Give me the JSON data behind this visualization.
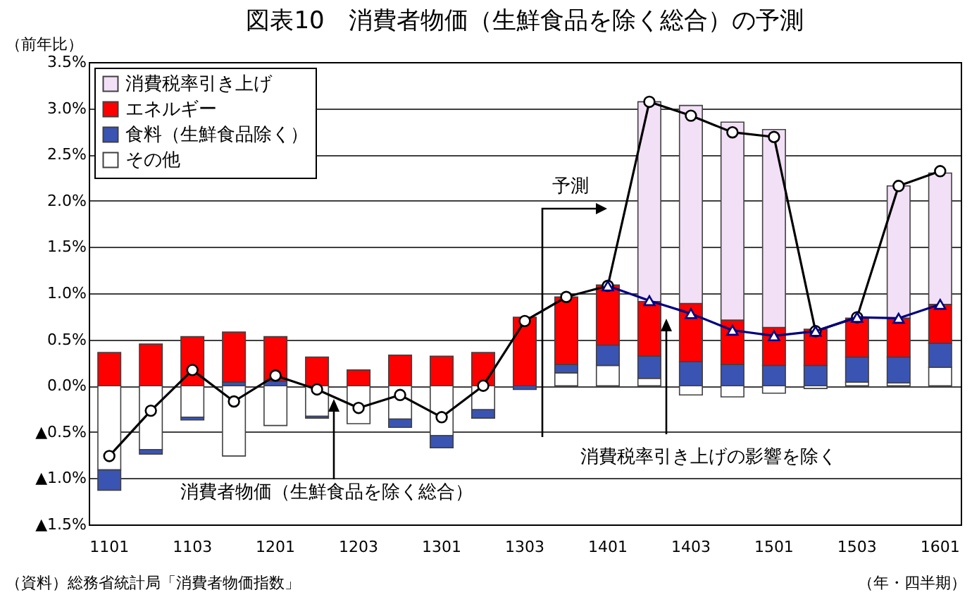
{
  "chart_data": {
    "type": "bar",
    "title": "図表10　消費者物価（生鮮食品を除く総合）の予測",
    "ylabel": "（前年比）",
    "xlabel": "（年・四半期）",
    "annotations": [
      "予測",
      "（資料）総務省統計局「消費者物価指数」"
    ],
    "categories": [
      "1101",
      null,
      "1103",
      null,
      "1201",
      null,
      "1203",
      null,
      "1301",
      null,
      "1303",
      null,
      "1401",
      null,
      "1403",
      null,
      "1501",
      null,
      "1503",
      null,
      "1601"
    ],
    "stacked": true,
    "legend": "top left",
    "grid": "y",
    "ylim": [
      -1.5,
      3.5
    ],
    "yticks": [
      {
        "value": -1.5,
        "label": "▲1.5%"
      },
      {
        "value": -1.0,
        "label": "▲1.0%"
      },
      {
        "value": -0.5,
        "label": "▲0.5%"
      },
      {
        "value": 0,
        "label": "0.0%"
      },
      {
        "value": 0.5,
        "label": "0.5%"
      },
      {
        "value": 1.0,
        "label": "1.0%"
      },
      {
        "value": 1.5,
        "label": "1.5%"
      },
      {
        "value": 2.0,
        "label": "2.0%"
      },
      {
        "value": 2.5,
        "label": "2.5%"
      },
      {
        "value": 3.0,
        "label": "3.0%"
      },
      {
        "value": 3.5,
        "label": "3.5%"
      }
    ],
    "series": [
      {
        "name": "その他",
        "color": "#ffffff",
        "values": [
          -0.91,
          -0.69,
          -0.34,
          -0.76,
          -0.43,
          -0.33,
          -0.41,
          -0.36,
          -0.54,
          -0.26,
          0,
          0.14,
          0.22,
          0.08,
          -0.1,
          -0.12,
          -0.08,
          -0.03,
          0.04,
          0.03,
          0.2
        ]
      },
      {
        "name": "食料（生鮮食品除く）",
        "color": "#3a54b4",
        "values": [
          -0.22,
          -0.05,
          -0.03,
          0.04,
          0.05,
          -0.02,
          0,
          -0.09,
          -0.13,
          -0.09,
          -0.04,
          0.09,
          0.22,
          0.24,
          0.26,
          0.23,
          0.22,
          0.22,
          0.27,
          0.28,
          0.26
        ]
      },
      {
        "name": "エネルギー",
        "color": "#ff0000",
        "values": [
          0.36,
          0.45,
          0.53,
          0.54,
          0.48,
          0.31,
          0.17,
          0.33,
          0.32,
          0.36,
          0.74,
          0.73,
          0.65,
          0.59,
          0.63,
          0.48,
          0.41,
          0.39,
          0.42,
          0.42,
          0.42
        ]
      },
      {
        "name": "消費税率引き上げ",
        "color": "#f2e0f6",
        "values": [
          null,
          null,
          null,
          null,
          null,
          null,
          null,
          null,
          null,
          null,
          null,
          null,
          null,
          2.16,
          2.14,
          2.14,
          2.14,
          null,
          null,
          1.43,
          1.42
        ]
      },
      {
        "name": "消費者物価（生鮮食品を除く総合）",
        "type": "line",
        "color": "#000000",
        "marker": "circle",
        "values": [
          -0.76,
          -0.27,
          0.17,
          -0.17,
          0.11,
          -0.04,
          -0.24,
          -0.1,
          -0.34,
          0.0,
          0.7,
          0.96,
          1.08,
          3.07,
          2.92,
          2.74,
          2.69,
          0.59,
          0.74,
          2.16,
          2.32
        ]
      },
      {
        "name": "消費税率引き上げの影響を除く",
        "type": "line",
        "color": "#000080",
        "marker": "triangle",
        "values": [
          null,
          null,
          null,
          null,
          null,
          null,
          null,
          null,
          null,
          null,
          null,
          null,
          1.08,
          0.92,
          0.78,
          0.6,
          0.54,
          0.59,
          0.74,
          0.73,
          0.88
        ]
      }
    ]
  }
}
